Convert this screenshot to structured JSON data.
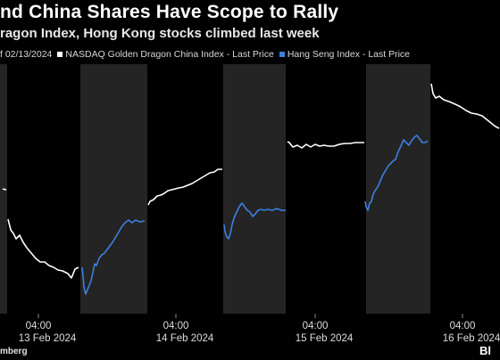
{
  "header": {
    "title": "nd China Shares Have Scope to Rally",
    "subtitle": "ragon Index, Hong Kong stocks climbed last week"
  },
  "legend": {
    "asof": "f 02/13/2024",
    "items": [
      {
        "label": "NASDAQ Golden Dragon China Index - Last Price",
        "color": "#ffffff"
      },
      {
        "label": "Hang Seng Index - Last Price",
        "color": "#3d7fe0"
      }
    ]
  },
  "footer": {
    "source": "mberg",
    "logo": "Bl"
  },
  "colors": {
    "background": "#000000",
    "shade": "#242424",
    "nasdaq": "#ffffff",
    "hangseng": "#3d7fe0"
  },
  "chart_data": {
    "type": "line",
    "title": "nd China Shares Have Scope to Rally",
    "subtitle": "ragon Index, Hong Kong stocks climbed last week",
    "y_axis": "none shown",
    "grid": false,
    "legend_position": "top",
    "x_ticks": [
      {
        "time": "04:00",
        "date": "13 Feb 2024"
      },
      {
        "time": "04:00",
        "date": "14 Feb 2024"
      },
      {
        "time": "04:00",
        "date": "15 Feb 2024"
      },
      {
        "time": "04:00",
        "date": "16 Feb 2024"
      }
    ],
    "shaded_sessions": [
      "12 Feb 2024 late",
      "13 Feb 2024",
      "14 Feb 2024",
      "15 Feb 2024",
      "16 Feb 2024"
    ],
    "series": [
      {
        "name": "NASDAQ Golden Dragon China Index - Last Price",
        "segments": [
          [
            [
              3,
              212
            ],
            [
              7,
              213
            ]
          ],
          [
            [
              9,
              246
            ],
            [
              12,
              258
            ],
            [
              15,
              262
            ],
            [
              18,
              268
            ],
            [
              22,
              264
            ],
            [
              26,
              272
            ],
            [
              30,
              278
            ],
            [
              35,
              284
            ],
            [
              40,
              290
            ],
            [
              45,
              294
            ],
            [
              50,
              294
            ],
            [
              55,
              298
            ],
            [
              60,
              300
            ],
            [
              65,
              303
            ],
            [
              70,
              304
            ],
            [
              76,
              307
            ],
            [
              80,
              312
            ],
            [
              84,
              302
            ],
            [
              88,
              300
            ]
          ],
          [
            [
              166,
              230
            ],
            [
              168,
              226
            ],
            [
              172,
              224
            ],
            [
              176,
              220
            ],
            [
              180,
              219
            ],
            [
              184,
              217
            ],
            [
              188,
              214
            ],
            [
              192,
              213
            ],
            [
              196,
              212
            ],
            [
              200,
              211
            ],
            [
              205,
              210
            ],
            [
              210,
              208
            ],
            [
              215,
              206
            ],
            [
              220,
              203
            ],
            [
              225,
              200
            ],
            [
              230,
              197
            ],
            [
              235,
              194
            ],
            [
              240,
              193
            ],
            [
              244,
              190
            ],
            [
              249,
              190
            ]
          ],
          [
            [
              322,
              159
            ],
            [
              324,
              160
            ],
            [
              328,
              165
            ],
            [
              333,
              163
            ],
            [
              338,
              166
            ],
            [
              343,
              162
            ],
            [
              348,
              165
            ],
            [
              353,
              162
            ],
            [
              358,
              164
            ],
            [
              363,
              163
            ],
            [
              368,
              164
            ],
            [
              374,
              164
            ],
            [
              380,
              162
            ],
            [
              386,
              161
            ],
            [
              392,
              161
            ],
            [
              398,
              160
            ],
            [
              404,
              160
            ],
            [
              408,
              160
            ]
          ],
          [
            [
              483,
              94
            ],
            [
              485,
              105
            ],
            [
              488,
              110
            ],
            [
              492,
              108
            ],
            [
              497,
              112
            ],
            [
              503,
              114
            ],
            [
              510,
              117
            ],
            [
              516,
              120
            ],
            [
              522,
              124
            ],
            [
              528,
              127
            ],
            [
              534,
              128
            ],
            [
              540,
              130
            ],
            [
              545,
              134
            ],
            [
              550,
              138
            ],
            [
              555,
              142
            ],
            [
              559,
              144
            ]
          ]
        ]
      },
      {
        "name": "Hang Seng Index - Last Price",
        "segments": [
          [
            [
              92,
              300
            ],
            [
              93,
              310
            ],
            [
              94,
              322
            ],
            [
              96,
              330
            ],
            [
              98,
              325
            ],
            [
              100,
              320
            ],
            [
              102,
              315
            ],
            [
              104,
              306
            ],
            [
              106,
              296
            ],
            [
              108,
              298
            ],
            [
              111,
              290
            ],
            [
              114,
              286
            ],
            [
              117,
              284
            ],
            [
              120,
              280
            ],
            [
              123,
              276
            ],
            [
              126,
              272
            ],
            [
              129,
              267
            ],
            [
              132,
              262
            ],
            [
              136,
              255
            ],
            [
              140,
              250
            ],
            [
              144,
              247
            ],
            [
              148,
              250
            ],
            [
              152,
              247
            ],
            [
              157,
              249
            ],
            [
              162,
              248
            ]
          ],
          [
            [
              251,
              252
            ],
            [
              252,
              260
            ],
            [
              254,
              266
            ],
            [
              256,
              268
            ],
            [
              258,
              262
            ],
            [
              260,
              252
            ],
            [
              262,
              245
            ],
            [
              265,
              238
            ],
            [
              268,
              232
            ],
            [
              271,
              228
            ],
            [
              274,
              232
            ],
            [
              277,
              236
            ],
            [
              280,
              238
            ],
            [
              283,
              243
            ],
            [
              286,
              240
            ],
            [
              289,
              236
            ],
            [
              292,
              235
            ],
            [
              296,
              236
            ],
            [
              300,
              235
            ],
            [
              305,
              236
            ],
            [
              310,
              234
            ],
            [
              315,
              236
            ],
            [
              320,
              236
            ]
          ],
          [
            [
              409,
              226
            ],
            [
              410,
              232
            ],
            [
              412,
              236
            ],
            [
              414,
              228
            ],
            [
              416,
              226
            ],
            [
              418,
              218
            ],
            [
              420,
              214
            ],
            [
              423,
              210
            ],
            [
              426,
              203
            ],
            [
              429,
              196
            ],
            [
              432,
              191
            ],
            [
              435,
              186
            ],
            [
              438,
              183
            ],
            [
              441,
              180
            ],
            [
              443,
              179
            ],
            [
              446,
              170
            ],
            [
              449,
              164
            ],
            [
              452,
              157
            ],
            [
              455,
              160
            ],
            [
              458,
              163
            ],
            [
              461,
              158
            ],
            [
              464,
              154
            ],
            [
              467,
              152
            ],
            [
              470,
              156
            ],
            [
              473,
              160
            ],
            [
              476,
              160
            ],
            [
              479,
              158
            ]
          ]
        ]
      }
    ]
  }
}
